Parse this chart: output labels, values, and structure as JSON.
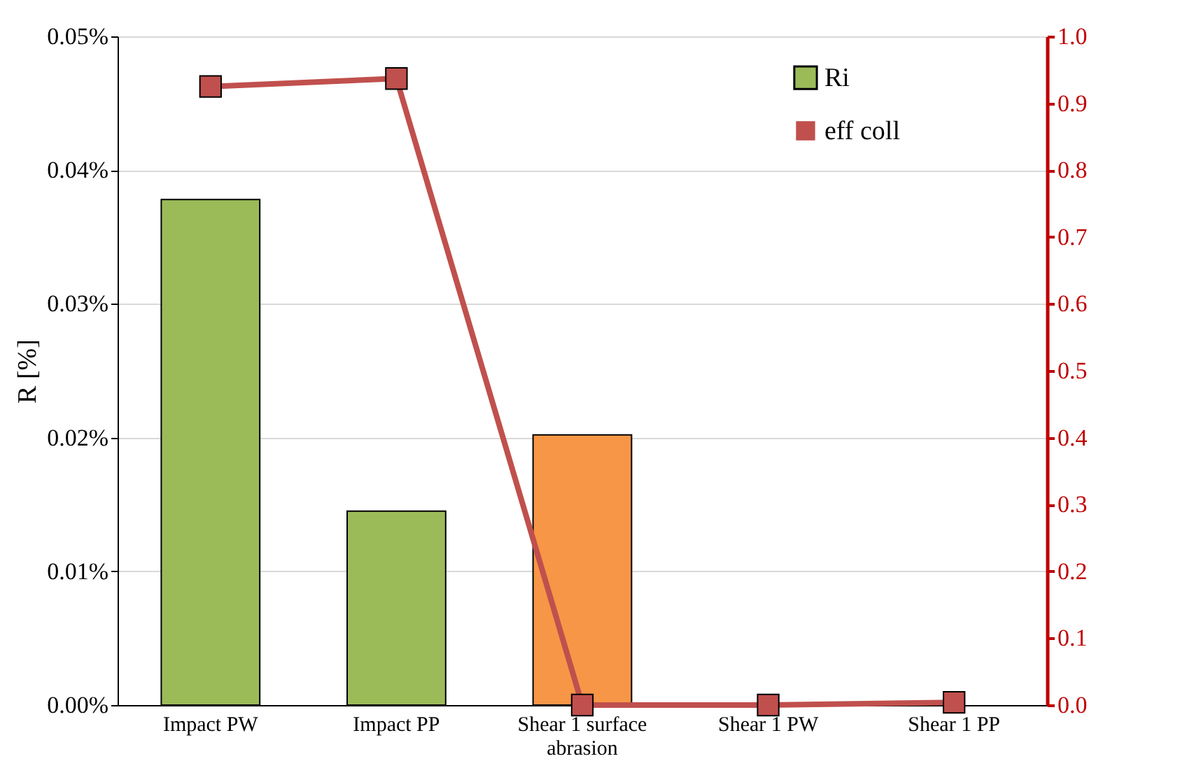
{
  "chart_data": {
    "type": "bar",
    "ylabel": "R [%]",
    "categories": [
      "Impact PW",
      "Impact PP",
      "Shear 1 surface abrasion",
      "Shear 1 PW",
      "Shear 1 PP"
    ],
    "series": [
      {
        "name": "Ri",
        "color": "#9bbb59",
        "colors": [
          "#9bbb59",
          "#9bbb59",
          "#f79646",
          "#9bbb59",
          "#9bbb59"
        ],
        "values": [
          0.0378,
          0.0145,
          0.0202,
          null,
          null
        ]
      },
      {
        "name": "eff coll",
        "type": "line",
        "axis": "y2",
        "color": "#c0504d",
        "values": [
          0.925,
          0.937,
          0.0,
          0.0,
          0.004
        ]
      }
    ],
    "ylim": [
      0,
      0.05
    ],
    "yticks": [
      {
        "value": 0,
        "label": "0.00%"
      },
      {
        "value": 0.01,
        "label": "0.01%"
      },
      {
        "value": 0.02,
        "label": "0.02%"
      },
      {
        "value": 0.03,
        "label": "0.03%"
      },
      {
        "value": 0.04,
        "label": "0.04%"
      },
      {
        "value": 0.05,
        "label": "0.05%"
      }
    ],
    "y2lim": [
      0,
      1
    ],
    "y2ticks": [
      {
        "value": 0,
        "label": "0.0"
      },
      {
        "value": 0.1,
        "label": "0.1"
      },
      {
        "value": 0.2,
        "label": "0.2"
      },
      {
        "value": 0.3,
        "label": "0.3"
      },
      {
        "value": 0.4,
        "label": "0.4"
      },
      {
        "value": 0.5,
        "label": "0.5"
      },
      {
        "value": 0.6,
        "label": "0.6"
      },
      {
        "value": 0.7,
        "label": "0.7"
      },
      {
        "value": 0.8,
        "label": "0.8"
      },
      {
        "value": 0.9,
        "label": "0.9"
      },
      {
        "value": 1,
        "label": "1.0"
      }
    ],
    "grid": "y",
    "legend": "top right",
    "marker": "square",
    "line_style": "solid"
  }
}
